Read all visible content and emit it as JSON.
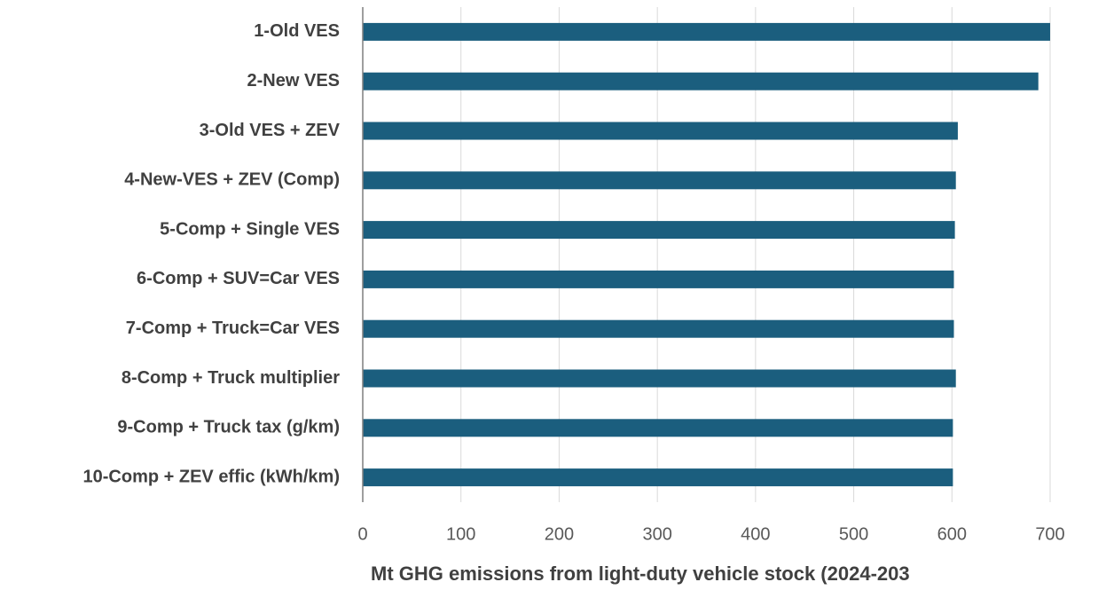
{
  "chart_data": {
    "type": "barh",
    "x_label": "Mt GHG emissions from light-duty vehicle stock (2024-203",
    "categories": [
      "1-Old VES",
      "2-New VES",
      "3-Old VES + ZEV",
      "4-New-VES + ZEV (Comp)",
      "5-Comp + Single VES",
      "6-Comp + SUV=Car VES",
      "7-Comp + Truck=Car VES",
      "8-Comp + Truck multiplier",
      "9-Comp + Truck tax (g/km)",
      "10-Comp + ZEV effic (kWh/km)"
    ],
    "values": [
      700,
      688,
      606,
      604,
      603,
      602,
      602,
      604,
      601,
      601
    ],
    "color": "#1b5e7e",
    "xlim": [
      0,
      700
    ],
    "xticks": [
      0,
      100,
      200,
      300,
      400,
      500,
      600,
      700
    ],
    "grid": true
  }
}
